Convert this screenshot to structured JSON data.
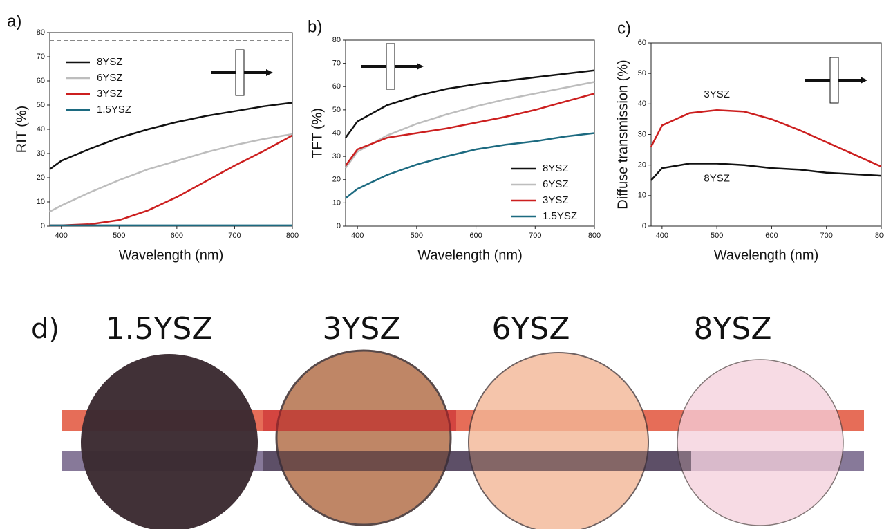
{
  "chart_data": [
    {
      "type": "line",
      "panel_label": "a)",
      "xlabel": "Wavelength (nm)",
      "ylabel": "RIT (%)",
      "x": [
        380,
        400,
        450,
        500,
        550,
        600,
        650,
        700,
        750,
        800
      ],
      "xlim": [
        380,
        800
      ],
      "xticks": [
        400,
        500,
        600,
        700,
        800
      ],
      "ylim": [
        0,
        80
      ],
      "yticks": [
        0,
        10,
        20,
        30,
        40,
        50,
        60,
        70,
        80
      ],
      "reference_line": 76.5,
      "legend": "upper left",
      "series": [
        {
          "name": "8YSZ",
          "color": "#111111",
          "values": [
            23.5,
            27,
            32,
            36.5,
            40,
            43,
            45.5,
            47.5,
            49.5,
            51
          ]
        },
        {
          "name": "6YSZ",
          "color": "#bdbdbd",
          "values": [
            6,
            8.5,
            14,
            19,
            23.5,
            27,
            30.5,
            33.5,
            36,
            38
          ]
        },
        {
          "name": "3YSZ",
          "color": "#cc1f1f",
          "values": [
            0.3,
            0.3,
            0.8,
            2.5,
            6.5,
            12,
            18.5,
            25,
            31,
            37.5
          ]
        },
        {
          "name": "1.5YSZ",
          "color": "#1c6a80",
          "values": [
            0.3,
            0.3,
            0.3,
            0.3,
            0.3,
            0.3,
            0.3,
            0.3,
            0.3,
            0.3
          ]
        }
      ]
    },
    {
      "type": "line",
      "panel_label": "b)",
      "xlabel": "Wavelength (nm)",
      "ylabel": "TFT (%)",
      "x": [
        380,
        400,
        450,
        500,
        550,
        600,
        650,
        700,
        750,
        800
      ],
      "xlim": [
        380,
        800
      ],
      "xticks": [
        400,
        500,
        600,
        700,
        800
      ],
      "ylim": [
        0,
        80
      ],
      "yticks": [
        0,
        10,
        20,
        30,
        40,
        50,
        60,
        70,
        80
      ],
      "legend": "lower right",
      "series": [
        {
          "name": "8YSZ",
          "color": "#111111",
          "values": [
            38,
            45,
            52,
            56,
            59,
            61,
            62.5,
            64,
            65.5,
            67
          ]
        },
        {
          "name": "6YSZ",
          "color": "#bdbdbd",
          "values": [
            25,
            32,
            39,
            44,
            48,
            51.5,
            54.5,
            57,
            59.5,
            62
          ]
        },
        {
          "name": "3YSZ",
          "color": "#cc1f1f",
          "values": [
            26,
            33,
            38,
            40,
            42,
            44.5,
            47,
            50,
            53.5,
            57
          ]
        },
        {
          "name": "1.5YSZ",
          "color": "#1c6a80",
          "values": [
            12,
            16,
            22,
            26.5,
            30,
            33,
            35,
            36.5,
            38.5,
            40
          ]
        }
      ]
    },
    {
      "type": "line",
      "panel_label": "c)",
      "xlabel": "Wavelength (nm)",
      "ylabel": "Diffuse transmission (%)",
      "x": [
        380,
        400,
        450,
        500,
        550,
        600,
        650,
        700,
        750,
        800
      ],
      "xlim": [
        380,
        800
      ],
      "xticks": [
        400,
        500,
        600,
        700,
        800
      ],
      "ylim": [
        0,
        60
      ],
      "yticks": [
        0,
        10,
        20,
        30,
        40,
        50,
        60
      ],
      "legend": "inline",
      "series": [
        {
          "name": "3YSZ",
          "color": "#cc1f1f",
          "values": [
            26,
            33,
            37,
            38,
            37.5,
            35,
            31.5,
            27.5,
            23.5,
            19.5
          ]
        },
        {
          "name": "8YSZ",
          "color": "#111111",
          "values": [
            15,
            19,
            20.5,
            20.5,
            20,
            19,
            18.5,
            17.5,
            17,
            16.5
          ]
        }
      ]
    }
  ],
  "photo": {
    "panel_label": "d)",
    "samples": [
      "1.5YSZ",
      "3YSZ",
      "6YSZ",
      "8YSZ"
    ]
  }
}
